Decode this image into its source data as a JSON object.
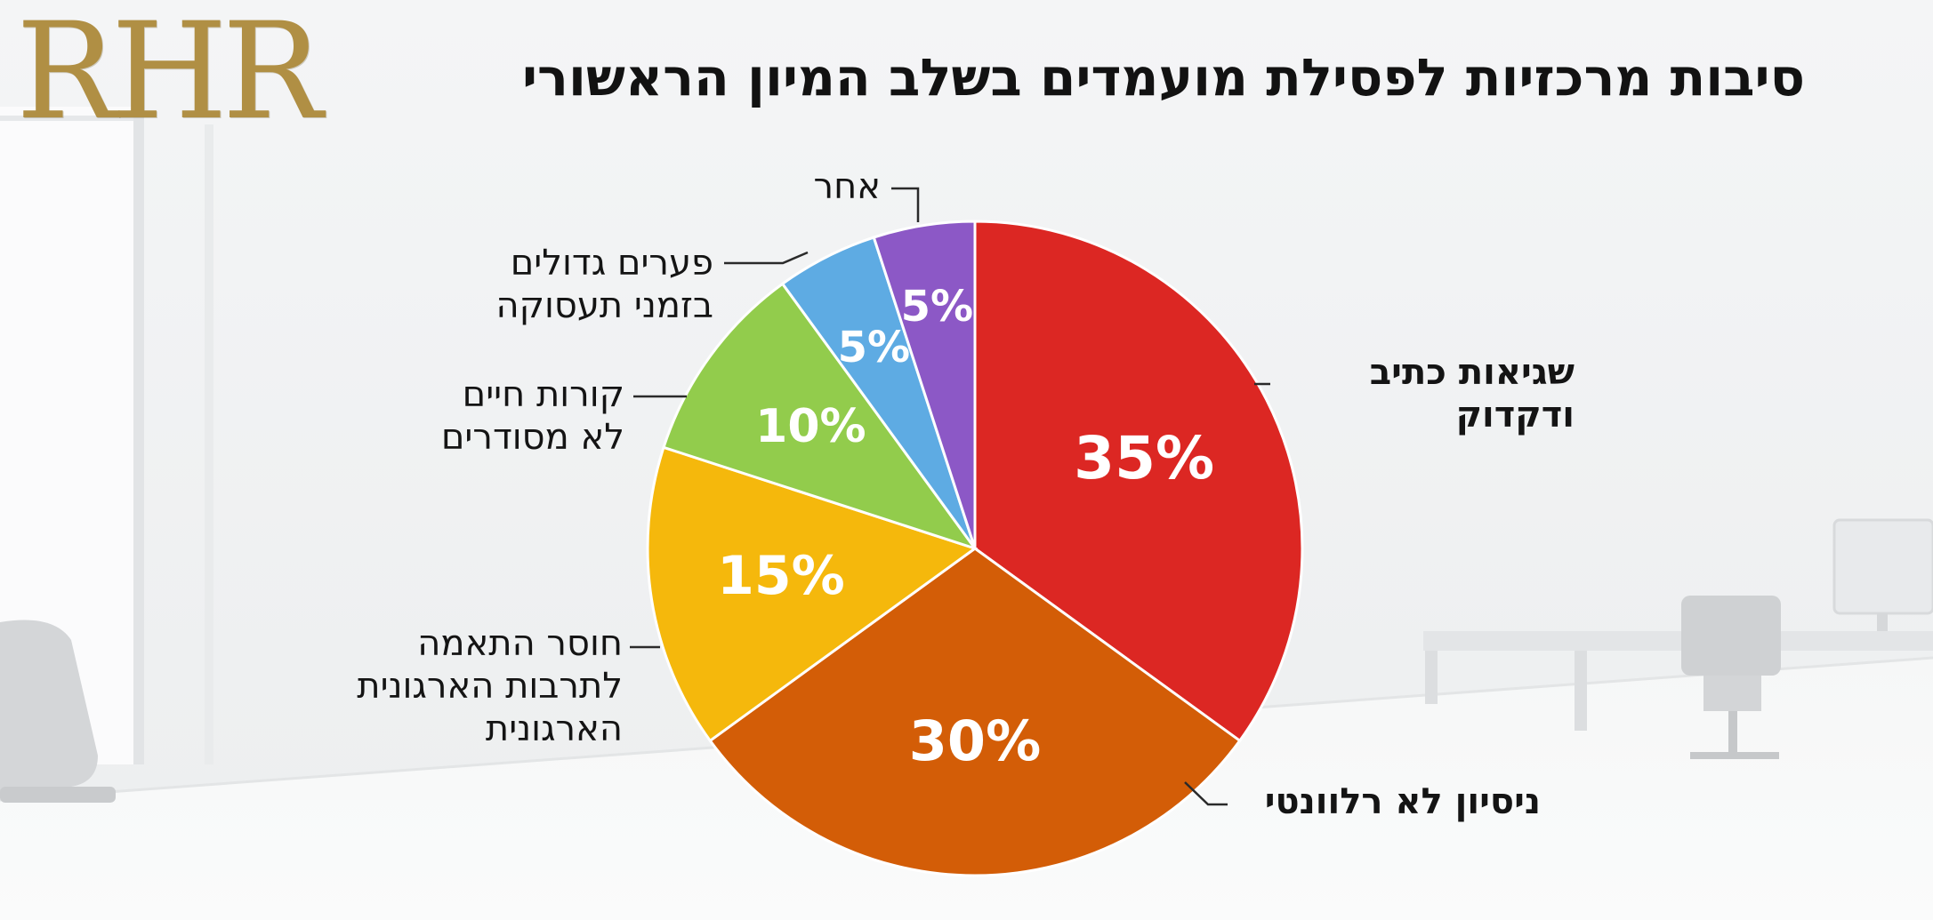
{
  "logo": {
    "text": "RHR"
  },
  "chart_data": {
    "type": "pie",
    "title": "סיבות  מרכזיות לפסילת מועמדים בשלב המיון הראשורי",
    "slices": [
      {
        "label_lines": [
          "שגיאות כתיב",
          "ודקדוק"
        ],
        "value": 35,
        "value_label": "35%",
        "color": "#dc2723"
      },
      {
        "label_lines": [
          "ניסיון לא רלוונטי"
        ],
        "value": 30,
        "value_label": "30%",
        "color": "#d35d07"
      },
      {
        "label_lines": [
          "חוסר התאמה",
          "לתרבות הארגונית",
          "הארגונית"
        ],
        "value": 15,
        "value_label": "15%",
        "color": "#f5b80c"
      },
      {
        "label_lines": [
          "קורות חיים",
          "לא מסודרים"
        ],
        "value": 10,
        "value_label": "10%",
        "color": "#92cc4c"
      },
      {
        "label_lines": [
          "פערים גדולים",
          "בזמני תעסוקה"
        ],
        "value": 5,
        "value_label": "5%",
        "color": "#5eabe3"
      },
      {
        "label_lines": [
          "אחר"
        ],
        "value": 5,
        "value_label": "5%",
        "color": "#8c58c6"
      }
    ]
  }
}
